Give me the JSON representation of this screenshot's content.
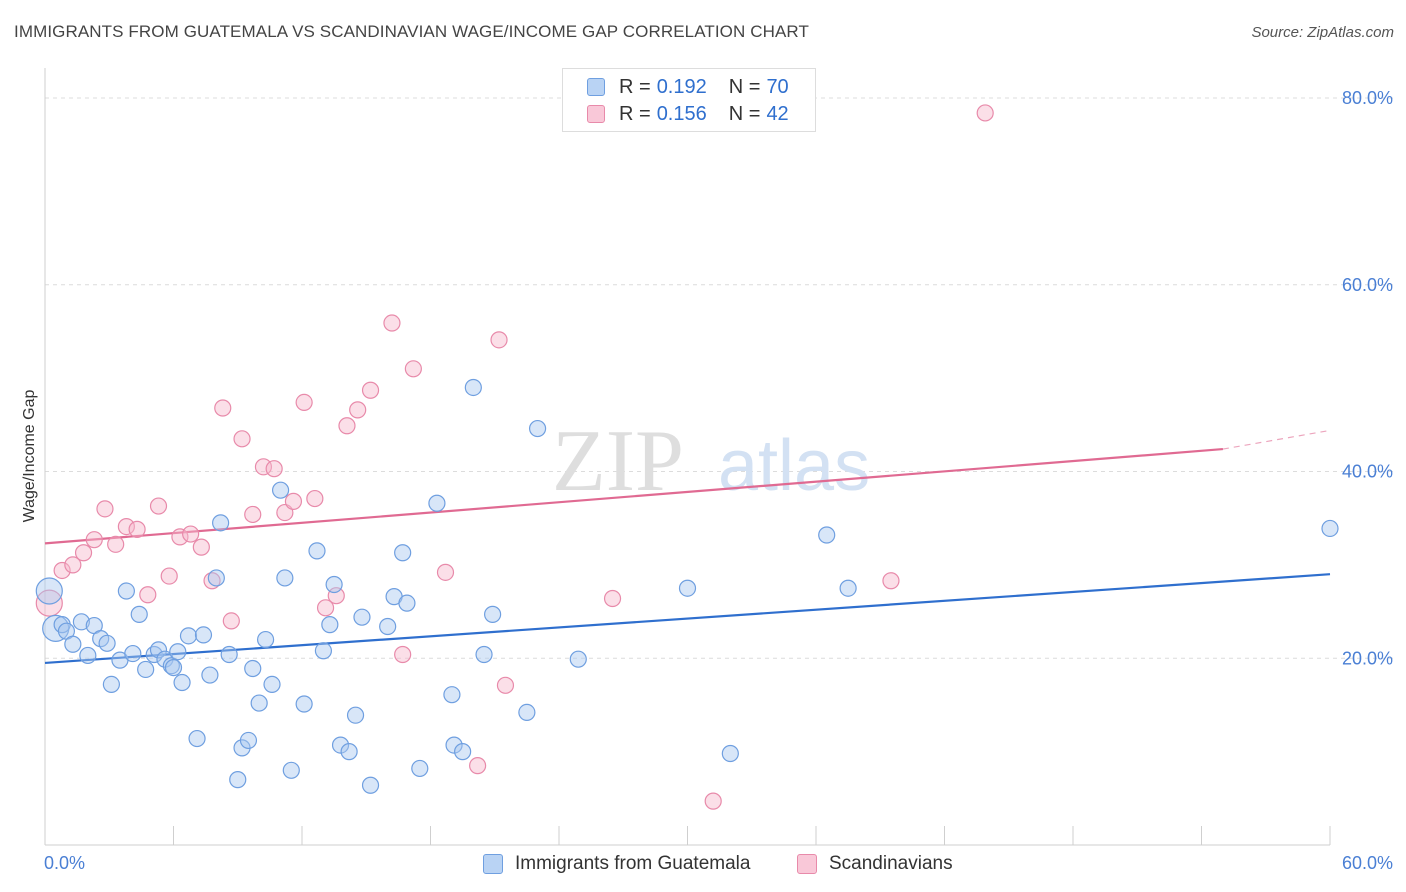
{
  "header": {
    "title": "IMMIGRANTS FROM GUATEMALA VS SCANDINAVIAN WAGE/INCOME GAP CORRELATION CHART",
    "source": "Source: ZipAtlas.com"
  },
  "watermark": {
    "zip": "ZIP",
    "atlas": "atlas"
  },
  "legend": {
    "rows": [
      {
        "r_label": "R =",
        "r_value": "0.192",
        "n_label": "N =",
        "n_value": "70"
      },
      {
        "r_label": "R =",
        "r_value": "0.156",
        "n_label": "N =",
        "n_value": "42"
      }
    ]
  },
  "bottom_legend": [
    "Immigrants from Guatemala",
    "Scandinavians"
  ],
  "colors": {
    "blue_fill": "#a9c8f0",
    "blue_stroke": "#6f9fe0",
    "blue_line": "#2f6fce",
    "pink_fill": "#f6b8cc",
    "pink_stroke": "#e88aaa",
    "pink_line": "#e06a92",
    "grid": "#dcdcdc",
    "tick_text": "#4a7fd4"
  },
  "chart_data": {
    "type": "scatter",
    "title": "IMMIGRANTS FROM GUATEMALA VS SCANDINAVIAN WAGE/INCOME GAP CORRELATION CHART",
    "xlabel": "",
    "ylabel": "Wage/Income Gap",
    "xlim": [
      0,
      60
    ],
    "ylim": [
      0,
      80
    ],
    "x_tick_labels": [
      "0.0%",
      "60.0%"
    ],
    "y_ticks": [
      20,
      40,
      60,
      80
    ],
    "y_tick_labels": [
      "20.0%",
      "40.0%",
      "60.0%",
      "80.0%"
    ],
    "grid": true,
    "legend_position": "top-center",
    "series": [
      {
        "name": "Immigrants from Guatemala",
        "r": 0.192,
        "n": 70,
        "trend": {
          "x": [
            0,
            60
          ],
          "y": [
            19.5,
            29.0
          ]
        },
        "points": [
          [
            0.2,
            27.2
          ],
          [
            0.5,
            23.2
          ],
          [
            0.8,
            23.6
          ],
          [
            1.0,
            22.9
          ],
          [
            1.3,
            21.5
          ],
          [
            1.7,
            23.9
          ],
          [
            2.0,
            20.3
          ],
          [
            2.3,
            23.5
          ],
          [
            2.6,
            22.1
          ],
          [
            2.9,
            21.6
          ],
          [
            3.1,
            17.2
          ],
          [
            3.5,
            19.8
          ],
          [
            3.8,
            27.2
          ],
          [
            4.1,
            20.5
          ],
          [
            4.4,
            24.7
          ],
          [
            4.7,
            18.8
          ],
          [
            5.1,
            20.4
          ],
          [
            5.3,
            20.9
          ],
          [
            5.6,
            19.9
          ],
          [
            5.9,
            19.2
          ],
          [
            6.2,
            20.7
          ],
          [
            6.4,
            17.4
          ],
          [
            6.7,
            22.4
          ],
          [
            7.1,
            11.4
          ],
          [
            7.4,
            22.5
          ],
          [
            7.7,
            18.2
          ],
          [
            8.0,
            28.6
          ],
          [
            8.2,
            34.5
          ],
          [
            8.6,
            20.4
          ],
          [
            9.0,
            7.0
          ],
          [
            9.2,
            10.4
          ],
          [
            9.5,
            11.2
          ],
          [
            9.7,
            18.9
          ],
          [
            10.0,
            15.2
          ],
          [
            10.3,
            22.0
          ],
          [
            10.6,
            17.2
          ],
          [
            11.0,
            38.0
          ],
          [
            11.2,
            28.6
          ],
          [
            11.5,
            8.0
          ],
          [
            12.1,
            15.1
          ],
          [
            12.7,
            31.5
          ],
          [
            13.0,
            20.8
          ],
          [
            13.3,
            23.6
          ],
          [
            13.5,
            27.9
          ],
          [
            13.8,
            10.7
          ],
          [
            14.2,
            10.0
          ],
          [
            14.5,
            13.9
          ],
          [
            14.8,
            24.4
          ],
          [
            15.2,
            6.4
          ],
          [
            16.0,
            23.4
          ],
          [
            16.3,
            26.6
          ],
          [
            16.7,
            31.3
          ],
          [
            16.9,
            25.9
          ],
          [
            17.5,
            8.2
          ],
          [
            18.3,
            36.6
          ],
          [
            19.0,
            16.1
          ],
          [
            19.1,
            10.7
          ],
          [
            19.5,
            10.0
          ],
          [
            20.0,
            49.0
          ],
          [
            20.5,
            20.4
          ],
          [
            20.9,
            24.7
          ],
          [
            22.5,
            14.2
          ],
          [
            23.0,
            44.6
          ],
          [
            24.9,
            19.9
          ],
          [
            30.0,
            27.5
          ],
          [
            32.0,
            9.8
          ],
          [
            36.5,
            33.2
          ],
          [
            37.5,
            27.5
          ],
          [
            60.0,
            33.9
          ],
          [
            6.0,
            19.0
          ]
        ]
      },
      {
        "name": "Scandinavians",
        "r": 0.156,
        "n": 42,
        "trend": {
          "x": [
            0,
            55
          ],
          "y": [
            32.3,
            42.4
          ]
        },
        "trend_dashed": {
          "x": [
            55,
            60
          ],
          "y": [
            42.4,
            44.4
          ]
        },
        "points": [
          [
            0.2,
            25.9
          ],
          [
            0.8,
            29.4
          ],
          [
            1.3,
            30.0
          ],
          [
            1.8,
            31.3
          ],
          [
            2.3,
            32.7
          ],
          [
            2.8,
            36.0
          ],
          [
            3.3,
            32.2
          ],
          [
            3.8,
            34.1
          ],
          [
            4.3,
            33.8
          ],
          [
            4.8,
            26.8
          ],
          [
            5.3,
            36.3
          ],
          [
            5.8,
            28.8
          ],
          [
            6.3,
            33.0
          ],
          [
            6.8,
            33.3
          ],
          [
            7.3,
            31.9
          ],
          [
            7.8,
            28.3
          ],
          [
            8.3,
            46.8
          ],
          [
            8.7,
            24.0
          ],
          [
            9.2,
            43.5
          ],
          [
            9.7,
            35.4
          ],
          [
            10.2,
            40.5
          ],
          [
            10.7,
            40.3
          ],
          [
            11.2,
            35.6
          ],
          [
            11.6,
            36.8
          ],
          [
            12.1,
            47.4
          ],
          [
            12.6,
            37.1
          ],
          [
            13.1,
            25.4
          ],
          [
            13.6,
            26.7
          ],
          [
            14.1,
            44.9
          ],
          [
            14.6,
            46.6
          ],
          [
            15.2,
            48.7
          ],
          [
            16.2,
            55.9
          ],
          [
            16.7,
            20.4
          ],
          [
            17.2,
            51.0
          ],
          [
            18.7,
            29.2
          ],
          [
            20.2,
            8.5
          ],
          [
            21.2,
            54.1
          ],
          [
            21.5,
            17.1
          ],
          [
            26.5,
            26.4
          ],
          [
            31.2,
            4.7
          ],
          [
            39.5,
            28.3
          ],
          [
            43.9,
            78.4
          ]
        ]
      }
    ]
  }
}
